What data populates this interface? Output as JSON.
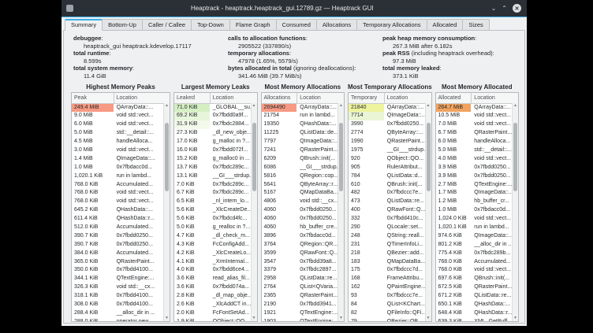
{
  "accent_color": "#3daee9",
  "window": {
    "title": "Heaptrack - heaptrack.heaptrack_gui.12789.gz — Heaptrack GUI",
    "controls": {
      "minimize": "⌄",
      "maximize": "⌃",
      "close": "✕"
    }
  },
  "tabs": [
    "Summary",
    "Bottom-Up",
    "Caller / Callee",
    "Top-Down",
    "Flame Graph",
    "Consumed",
    "Allocations",
    "Temporary Allocations",
    "Allocated",
    "Sizes"
  ],
  "active_tab": "Summary",
  "summary": {
    "columns": [
      [
        {
          "label": "debuggee",
          "suffix": "",
          "value": "heaptrack_gui heaptrack.kdevelop.17117"
        },
        {
          "label": "total runtime",
          "suffix": "",
          "value": "8.599s"
        },
        {
          "label": "total system memory",
          "suffix": "",
          "value": "11.4 GiB"
        }
      ],
      [
        {
          "label": "calls to allocation functions",
          "suffix": "",
          "value": "2905522 (337890/s)"
        },
        {
          "label": "temporary allocations",
          "suffix": "",
          "value": "47978 (1.65%, 5579/s)"
        },
        {
          "label": "bytes allocated in total",
          "suffix": " (ignoring deallocations)",
          "value": "341.46 MiB (39.7 MiB/s)"
        }
      ],
      [
        {
          "label": "peak heap memory consumption",
          "suffix": "",
          "value": "267.3 MiB after 6.182s"
        },
        {
          "label": "peak RSS",
          "suffix": " (including heaptrack overhead)",
          "value": "97.3 MiB"
        },
        {
          "label": "total memory leaked",
          "suffix": "",
          "value": "373.1 KiB"
        }
      ]
    ]
  },
  "panels": [
    {
      "title": "Highest Memory Peaks",
      "value_header": "Peak",
      "location_header": "Location",
      "rows": [
        {
          "v": "249.4 MiB",
          "loc": "QArrayData::...",
          "bg": "#f79a83"
        },
        {
          "v": "9.0 MiB",
          "loc": "void std::vect..."
        },
        {
          "v": "6.0 MiB",
          "loc": "void std::vect..."
        },
        {
          "v": "5.0 MiB",
          "loc": "std::__detail::..."
        },
        {
          "v": "4.5 MiB",
          "loc": "handleAlloca..."
        },
        {
          "v": "3.0 MiB",
          "loc": "void std::vect..."
        },
        {
          "v": "1.4 MiB",
          "loc": "QImageData::..."
        },
        {
          "v": "1.0 MiB",
          "loc": "0x7fbdacc0d..."
        },
        {
          "v": "1,020.1 KiB",
          "loc": "run in lambd..."
        },
        {
          "v": "768.0 KiB",
          "loc": "Accumulated..."
        },
        {
          "v": "768.0 KiB",
          "loc": "void std::vect..."
        },
        {
          "v": "768.0 KiB",
          "loc": "void std::vect..."
        },
        {
          "v": "645.2 KiB",
          "loc": "QHashData::..."
        },
        {
          "v": "611.4 KiB",
          "loc": "QHashData::r..."
        },
        {
          "v": "512.0 KiB",
          "loc": "Accumulated..."
        },
        {
          "v": "390.7 KiB",
          "loc": "0x7fbdd0250..."
        },
        {
          "v": "390.7 KiB",
          "loc": "0x7fbdd0250..."
        },
        {
          "v": "384.0 KiB",
          "loc": "Accumulated..."
        },
        {
          "v": "365.0 KiB",
          "loc": "QRasterPaint..."
        },
        {
          "v": "350.0 KiB",
          "loc": "0x7fbdd4100..."
        },
        {
          "v": "344.1 KiB",
          "loc": "QTextEngine:..."
        },
        {
          "v": "326.3 KiB",
          "loc": "void std::__cx..."
        },
        {
          "v": "318.1 KiB",
          "loc": "0x7fbdd4100..."
        },
        {
          "v": "308.0 KiB",
          "loc": "0x7fbdd4100..."
        },
        {
          "v": "288.4 KiB",
          "loc": "__alloc_dir in ..."
        },
        {
          "v": "288.0 KiB",
          "loc": "operator new..."
        }
      ]
    },
    {
      "title": "Largest Memory Leaks",
      "value_header": "Leaked",
      "location_header": "Location",
      "rows": [
        {
          "v": "71.0 KiB",
          "loc": "_GLOBAL__su...",
          "bg": "#d5efc3"
        },
        {
          "v": "69.2 KiB",
          "loc": "0x7fbdd0a9f...",
          "bg": "#e7f6db"
        },
        {
          "v": "31.9 KiB",
          "loc": "0x7fbdc2884...",
          "bg": "#f3faec"
        },
        {
          "v": "27.3 KiB",
          "loc": "_dl_new_obje..."
        },
        {
          "v": "17.0 KiB",
          "loc": "g_malloc in ?..."
        },
        {
          "v": "16.0 KiB",
          "loc": "0x7fbdd072f..."
        },
        {
          "v": "15.2 KiB",
          "loc": "g_malloc0 in ..."
        },
        {
          "v": "13.7 KiB",
          "loc": "0x7fbdc289c..."
        },
        {
          "v": "13.1 KiB",
          "loc": "__GI___strdup..."
        },
        {
          "v": "7.0 KiB",
          "loc": "0x7fbdc289c..."
        },
        {
          "v": "6.7 KiB",
          "loc": "0x7fbdc289c..."
        },
        {
          "v": "6.5 KiB",
          "loc": "_nl_intern_lo..."
        },
        {
          "v": "5.6 KiB",
          "loc": "_XlcCreateDe..."
        },
        {
          "v": "5.6 KiB",
          "loc": "0x7fbdcd4fc..."
        },
        {
          "v": "5.0 KiB",
          "loc": "g_realloc in ?..."
        },
        {
          "v": "4.7 KiB",
          "loc": "_dl_check_m..."
        },
        {
          "v": "4.3 KiB",
          "loc": "FcConfigAdd..."
        },
        {
          "v": "4.2 KiB",
          "loc": "_XlcCreateLo..."
        },
        {
          "v": "4.1 KiB",
          "loc": "_XrmInternal..."
        },
        {
          "v": "4.0 KiB",
          "loc": "0x7fbdd6ce4..."
        },
        {
          "v": "3.6 KiB",
          "loc": "read_alias_fil..."
        },
        {
          "v": "3.6 KiB",
          "loc": "0x7fbdd074a..."
        },
        {
          "v": "2.8 KiB",
          "loc": "_dl_map_obje..."
        },
        {
          "v": "2.6 KiB",
          "loc": "_XlcAddCT in..."
        },
        {
          "v": "2.0 KiB",
          "loc": "FcFontSetAd..."
        },
        {
          "v": "1.9 KiB",
          "loc": "QObject::QO..."
        }
      ]
    },
    {
      "title": "Most Memory Allocations",
      "value_header": "Allocations",
      "location_header": "Location",
      "rows": [
        {
          "v": "2694490",
          "loc": "QArrayData::...",
          "bg": "#f79a83"
        },
        {
          "v": "21754",
          "loc": "run in lambd..."
        },
        {
          "v": "19350",
          "loc": "QHashData::..."
        },
        {
          "v": "11225",
          "loc": "QListData::de..."
        },
        {
          "v": "7797",
          "loc": "QImageData::..."
        },
        {
          "v": "7241",
          "loc": "QRasterPaint..."
        },
        {
          "v": "6209",
          "loc": "QBrush::init(..."
        },
        {
          "v": "6086",
          "loc": "__GI___strdup..."
        },
        {
          "v": "5816",
          "loc": "QRegion::cop..."
        },
        {
          "v": "5641",
          "loc": "QByteArray::r..."
        },
        {
          "v": "5167",
          "loc": "QMapDataBa..."
        },
        {
          "v": "4806",
          "loc": "void std::__cx..."
        },
        {
          "v": "4060",
          "loc": "0x7fbdd0250..."
        },
        {
          "v": "4060",
          "loc": "0x7fbdd0250..."
        },
        {
          "v": "4060",
          "loc": "hb_buffer_cre..."
        },
        {
          "v": "3896",
          "loc": "0x7fbdacc0d..."
        },
        {
          "v": "3764",
          "loc": "QRegion::QR..."
        },
        {
          "v": "3599",
          "loc": "QRawFont::Q..."
        },
        {
          "v": "3547",
          "loc": "0x7fbdd39a8..."
        },
        {
          "v": "3379",
          "loc": "0x7fbdc2897..."
        },
        {
          "v": "2958",
          "loc": "QListData::re..."
        },
        {
          "v": "2764",
          "loc": "QList<QVaria..."
        },
        {
          "v": "2365",
          "loc": "QRasterPaint..."
        },
        {
          "v": "2190",
          "loc": "0x7fbdd3941..."
        },
        {
          "v": "1921",
          "loc": "QTextEngine:..."
        },
        {
          "v": "1903",
          "loc": "QTextEngine:..."
        }
      ]
    },
    {
      "title": "Most Temporary Allocations",
      "value_header": "Temporary",
      "location_header": "Location",
      "rows": [
        {
          "v": "21840",
          "loc": "QArrayData::...",
          "bg": "#eef49d"
        },
        {
          "v": "7714",
          "loc": "QImageData::...",
          "bg": "#e9f5d4"
        },
        {
          "v": "3990",
          "loc": "0x7fbdd0250..."
        },
        {
          "v": "2774",
          "loc": "QByteArray::..."
        },
        {
          "v": "1990",
          "loc": "QRasterPaint..."
        },
        {
          "v": "1975",
          "loc": "__GI___strdup..."
        },
        {
          "v": "920",
          "loc": "QObject::QO..."
        },
        {
          "v": "905",
          "loc": "RulerAttribut..."
        },
        {
          "v": "784",
          "loc": "QListData::d..."
        },
        {
          "v": "610",
          "loc": "QBrush::init(..."
        },
        {
          "v": "482",
          "loc": "0x7fbdccc7e..."
        },
        {
          "v": "473",
          "loc": "QListData::re..."
        },
        {
          "v": "400",
          "loc": "QRawFont::Q..."
        },
        {
          "v": "332",
          "loc": "0x7fbdd410c..."
        },
        {
          "v": "290",
          "loc": "QLocale::set..."
        },
        {
          "v": "248",
          "loc": "QString::reall..."
        },
        {
          "v": "231",
          "loc": "QTimerInfoLi..."
        },
        {
          "v": "218",
          "loc": "QBezier::add..."
        },
        {
          "v": "183",
          "loc": "QMapDataBa..."
        },
        {
          "v": "175",
          "loc": "0x7fbdccc7d..."
        },
        {
          "v": "168",
          "loc": "FrameAttribu..."
        },
        {
          "v": "162",
          "loc": "QPaintEngine..."
        },
        {
          "v": "93",
          "loc": "0x7fbdccc7e..."
        },
        {
          "v": "84",
          "loc": "QList<KChart..."
        },
        {
          "v": "82",
          "loc": "QFileInfo::QFi..."
        },
        {
          "v": "79",
          "loc": "QBezier::QB..."
        }
      ]
    },
    {
      "title": "Most Memory Allocated",
      "value_header": "Allocated",
      "location_header": "Location",
      "rows": [
        {
          "v": "264.7 MiB",
          "loc": "QArrayData::...",
          "bg": "#f1a35f"
        },
        {
          "v": "10.5 MiB",
          "loc": "void std::vect..."
        },
        {
          "v": "7.0 MiB",
          "loc": "void std::vect..."
        },
        {
          "v": "6.7 MiB",
          "loc": "QRasterPaint..."
        },
        {
          "v": "6.0 MiB",
          "loc": "handleAlloca..."
        },
        {
          "v": "5.0 MiB",
          "loc": "std::__detail::..."
        },
        {
          "v": "4.0 MiB",
          "loc": "void std::vect..."
        },
        {
          "v": "3.9 MiB",
          "loc": "0x7fbdd0250..."
        },
        {
          "v": "3.9 MiB",
          "loc": "0x7fbdd0250..."
        },
        {
          "v": "2.7 MiB",
          "loc": "QTextEngine:..."
        },
        {
          "v": "1.7 MiB",
          "loc": "QImageData::..."
        },
        {
          "v": "1.2 MiB",
          "loc": "hb_buffer_cr..."
        },
        {
          "v": "1.0 MiB",
          "loc": "0x7fbdacc0d..."
        },
        {
          "v": "1,024.0 KiB",
          "loc": "void std::vect..."
        },
        {
          "v": "1,020.1 KiB",
          "loc": "run in lambd..."
        },
        {
          "v": "974.6 KiB",
          "loc": "QImageData::..."
        },
        {
          "v": "801.2 KiB",
          "loc": "__alloc_dir in ..."
        },
        {
          "v": "775.4 KiB",
          "loc": "0x7fbdc289b..."
        },
        {
          "v": "768.0 KiB",
          "loc": "Accumulated..."
        },
        {
          "v": "768.0 KiB",
          "loc": "void std::vect..."
        },
        {
          "v": "697.6 KiB",
          "loc": "QBrush::init(..."
        },
        {
          "v": "672.5 KiB",
          "loc": "QRasterPaint..."
        },
        {
          "v": "671.2 KiB",
          "loc": "QListData::re..."
        },
        {
          "v": "650.1 KiB",
          "loc": "QHashData::..."
        },
        {
          "v": "648.4 KiB",
          "loc": "QHashData::r..."
        },
        {
          "v": "639.3 KiB",
          "loc": "XML_GetBuff..."
        }
      ]
    }
  ]
}
